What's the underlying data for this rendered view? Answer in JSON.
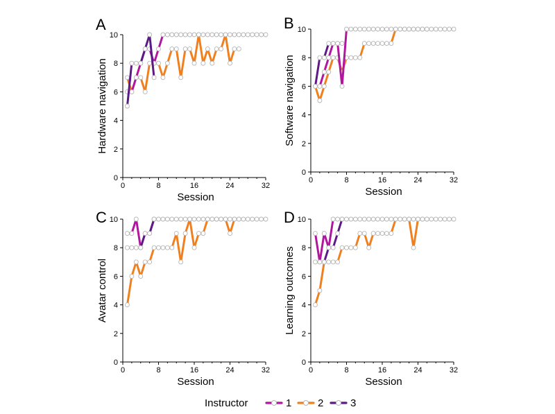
{
  "legend": {
    "title": "Instructor",
    "items": [
      {
        "label": "1",
        "color": "#b0169e"
      },
      {
        "label": "2",
        "color": "#f07f1e"
      },
      {
        "label": "3",
        "color": "#5b1a85"
      }
    ]
  },
  "chart_data": [
    {
      "type": "line",
      "letter": "A",
      "xlabel": "Session",
      "ylabel": "Hardware navigation",
      "xlim": [
        0,
        32
      ],
      "ylim": [
        0,
        10
      ],
      "xticks": [
        "0",
        "8",
        "16",
        "24",
        "32"
      ],
      "yticks": [
        "0",
        "2",
        "4",
        "6",
        "8",
        "10"
      ],
      "series": [
        {
          "name": "1",
          "x": [
            1,
            2,
            3,
            4,
            5,
            6,
            7,
            8,
            9,
            10,
            11,
            12,
            13,
            14,
            15,
            16,
            17,
            18,
            19,
            20,
            21,
            22,
            23,
            24,
            25,
            26,
            27,
            28,
            29,
            30,
            31,
            32
          ],
          "y": [
            6,
            6,
            7,
            8,
            9,
            9,
            8,
            9,
            10,
            10,
            10,
            10,
            10,
            10,
            10,
            10,
            10,
            10,
            10,
            10,
            10,
            10,
            10,
            10,
            10,
            10,
            10,
            10,
            10,
            10,
            10,
            10
          ]
        },
        {
          "name": "2",
          "x": [
            1,
            2,
            3,
            4,
            5,
            6,
            7,
            8,
            9,
            10,
            11,
            12,
            13,
            14,
            15,
            16,
            17,
            18,
            19,
            20,
            21,
            22,
            23,
            24,
            25,
            26
          ],
          "y": [
            7,
            6,
            7,
            7,
            6,
            8,
            8,
            8,
            7,
            8,
            9,
            9,
            7,
            9,
            9,
            8,
            10,
            8,
            9,
            8,
            9,
            9,
            10,
            8,
            9,
            9
          ]
        },
        {
          "name": "3",
          "x": [
            1,
            2,
            3,
            4,
            5,
            6,
            7
          ],
          "y": [
            5,
            8,
            8,
            8,
            9,
            10,
            7
          ]
        }
      ]
    },
    {
      "type": "line",
      "letter": "B",
      "xlabel": "Session",
      "ylabel": "Software navigation",
      "xlim": [
        0,
        32
      ],
      "ylim": [
        0,
        10
      ],
      "xticks": [
        "0",
        "8",
        "16",
        "24",
        "32"
      ],
      "yticks": [
        "0",
        "2",
        "4",
        "6",
        "8",
        "10"
      ],
      "series": [
        {
          "name": "1",
          "x": [
            1,
            2,
            3,
            4,
            5,
            6,
            7,
            8,
            9,
            10,
            11,
            12,
            13,
            14,
            15,
            16,
            17,
            18,
            19,
            20,
            21,
            22,
            23,
            24,
            25,
            26,
            27,
            28,
            29,
            30,
            31,
            32
          ],
          "y": [
            6,
            6,
            7,
            8,
            9,
            9,
            6,
            10,
            10,
            10,
            10,
            10,
            10,
            10,
            10,
            10,
            10,
            10,
            10,
            10,
            10,
            10,
            10,
            10,
            10,
            10,
            10,
            10,
            10,
            10,
            10,
            10
          ]
        },
        {
          "name": "2",
          "x": [
            1,
            2,
            3,
            4,
            5,
            6,
            7,
            8,
            9,
            10,
            11,
            12,
            13,
            14,
            15,
            16,
            17,
            18,
            19,
            20,
            21,
            22,
            23,
            24,
            25,
            26
          ],
          "y": [
            6,
            5,
            6,
            7,
            8,
            8,
            7,
            8,
            8,
            8,
            8,
            9,
            9,
            9,
            9,
            9,
            9,
            9,
            10,
            10,
            10,
            10,
            10,
            10,
            10,
            10
          ]
        },
        {
          "name": "3",
          "x": [
            1,
            2,
            3,
            4,
            5,
            6,
            7
          ],
          "y": [
            6,
            8,
            8,
            9,
            9,
            9,
            9
          ]
        }
      ]
    },
    {
      "type": "line",
      "letter": "C",
      "xlabel": "Session",
      "ylabel": "Avatar control",
      "xlim": [
        0,
        32
      ],
      "ylim": [
        0,
        10
      ],
      "xticks": [
        "0",
        "8",
        "16",
        "24",
        "32"
      ],
      "yticks": [
        "0",
        "2",
        "4",
        "6",
        "8",
        "10"
      ],
      "series": [
        {
          "name": "1",
          "x": [
            1,
            2,
            3,
            4,
            5,
            6,
            7,
            8,
            9,
            10,
            11,
            12,
            13,
            14,
            15,
            16,
            17,
            18,
            19,
            20,
            21,
            22,
            23,
            24,
            25,
            26,
            27,
            28,
            29,
            30,
            31,
            32
          ],
          "y": [
            9,
            9,
            10,
            8,
            9,
            9,
            10,
            10,
            10,
            10,
            10,
            10,
            10,
            10,
            10,
            10,
            10,
            10,
            10,
            10,
            10,
            10,
            10,
            10,
            10,
            10,
            10,
            10,
            10,
            10,
            10,
            10
          ]
        },
        {
          "name": "2",
          "x": [
            1,
            2,
            3,
            4,
            5,
            6,
            7,
            8,
            9,
            10,
            11,
            12,
            13,
            14,
            15,
            16,
            17,
            18,
            19,
            20,
            21,
            22,
            23,
            24,
            25,
            26
          ],
          "y": [
            4,
            6,
            7,
            6,
            7,
            7,
            8,
            8,
            8,
            8,
            8,
            9,
            7,
            9,
            10,
            8,
            9,
            9,
            10,
            10,
            10,
            10,
            10,
            9,
            10,
            10
          ]
        },
        {
          "name": "3",
          "x": [
            1,
            2,
            3,
            4,
            5,
            6,
            7
          ],
          "y": [
            8,
            8,
            8,
            8,
            9,
            9,
            10
          ]
        }
      ]
    },
    {
      "type": "line",
      "letter": "D",
      "xlabel": "Session",
      "ylabel": "Learning outcomes",
      "xlim": [
        0,
        32
      ],
      "ylim": [
        0,
        10
      ],
      "xticks": [
        "0",
        "8",
        "16",
        "24",
        "32"
      ],
      "yticks": [
        "0",
        "2",
        "4",
        "6",
        "8",
        "10"
      ],
      "series": [
        {
          "name": "1",
          "x": [
            1,
            2,
            3,
            4,
            5,
            6,
            7,
            8,
            9,
            10,
            11,
            12,
            13,
            14,
            15,
            16,
            17,
            18,
            19,
            20,
            21,
            22,
            23,
            24,
            25,
            26,
            27,
            28,
            29,
            30,
            31,
            32
          ],
          "y": [
            9,
            7,
            9,
            8,
            10,
            10,
            10,
            10,
            10,
            10,
            10,
            10,
            10,
            10,
            10,
            10,
            10,
            10,
            10,
            10,
            10,
            10,
            10,
            10,
            10,
            10,
            10,
            10,
            10,
            10,
            10,
            10
          ]
        },
        {
          "name": "2",
          "x": [
            1,
            2,
            3,
            4,
            5,
            6,
            7,
            8,
            9,
            10,
            11,
            12,
            13,
            14,
            15,
            16,
            17,
            18,
            19,
            20,
            21,
            22,
            23,
            24,
            25,
            26
          ],
          "y": [
            4,
            5,
            7,
            7,
            7,
            7,
            8,
            8,
            8,
            8,
            9,
            9,
            8,
            9,
            9,
            9,
            9,
            9,
            10,
            10,
            10,
            10,
            8,
            10,
            10,
            10
          ]
        },
        {
          "name": "3",
          "x": [
            1,
            2,
            3,
            4,
            5,
            6,
            7
          ],
          "y": [
            7,
            7,
            7,
            8,
            8,
            9,
            10
          ]
        }
      ]
    }
  ]
}
